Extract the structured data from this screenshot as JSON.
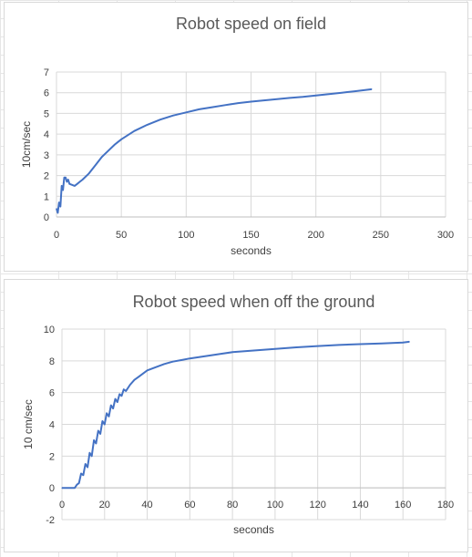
{
  "chart_data": [
    {
      "type": "line",
      "title": "Robot speed on field",
      "xlabel": "seconds",
      "ylabel": "10cm/sec",
      "xlim": [
        0,
        300
      ],
      "ylim": [
        0,
        7
      ],
      "xticks": [
        "0",
        "50",
        "100",
        "150",
        "200",
        "250",
        "300"
      ],
      "yticks": [
        "0",
        "1",
        "2",
        "3",
        "4",
        "5",
        "6",
        "7"
      ],
      "grid": true,
      "legend": "none",
      "series": [
        {
          "color": "#4472c4",
          "x": [
            0,
            1,
            2,
            3,
            4,
            5,
            6,
            7,
            8,
            9,
            10,
            12,
            14,
            16,
            18,
            20,
            25,
            30,
            35,
            40,
            45,
            50,
            60,
            70,
            80,
            90,
            100,
            110,
            120,
            130,
            140,
            150,
            160,
            170,
            180,
            190,
            200,
            210,
            220,
            230,
            243
          ],
          "y": [
            0.4,
            0.2,
            0.7,
            0.5,
            1.5,
            1.3,
            1.9,
            1.9,
            1.7,
            1.8,
            1.6,
            1.55,
            1.5,
            1.6,
            1.7,
            1.8,
            2.1,
            2.5,
            2.9,
            3.2,
            3.5,
            3.75,
            4.15,
            4.45,
            4.7,
            4.9,
            5.05,
            5.2,
            5.3,
            5.4,
            5.5,
            5.57,
            5.63,
            5.69,
            5.75,
            5.8,
            5.87,
            5.93,
            6.0,
            6.07,
            6.17
          ]
        }
      ]
    },
    {
      "type": "line",
      "title": "Robot speed when off the ground",
      "xlabel": "seconds",
      "ylabel": "10 cm/sec",
      "xlim": [
        0,
        180
      ],
      "ylim": [
        -2,
        10
      ],
      "xticks": [
        "0",
        "20",
        "40",
        "60",
        "80",
        "100",
        "120",
        "140",
        "160",
        "180"
      ],
      "yticks": [
        "-2",
        "0",
        "2",
        "4",
        "6",
        "8",
        "10"
      ],
      "grid": true,
      "legend": "none",
      "series": [
        {
          "color": "#4472c4",
          "x": [
            0,
            2,
            4,
            6,
            7,
            8,
            9,
            10,
            11,
            12,
            13,
            14,
            15,
            16,
            17,
            18,
            19,
            20,
            21,
            22,
            23,
            24,
            25,
            26,
            27,
            28,
            29,
            30,
            32,
            34,
            36,
            38,
            40,
            44,
            48,
            52,
            56,
            60,
            65,
            70,
            75,
            80,
            90,
            100,
            110,
            120,
            130,
            140,
            150,
            160,
            163
          ],
          "y": [
            0,
            0,
            0,
            0,
            0.2,
            0.3,
            0.9,
            0.8,
            1.5,
            1.3,
            2.2,
            2.0,
            3.0,
            2.8,
            3.6,
            3.4,
            4.2,
            4.0,
            4.7,
            4.5,
            5.2,
            5.0,
            5.6,
            5.4,
            5.9,
            5.8,
            6.2,
            6.1,
            6.5,
            6.8,
            7.0,
            7.2,
            7.4,
            7.6,
            7.8,
            7.95,
            8.05,
            8.15,
            8.25,
            8.35,
            8.45,
            8.55,
            8.65,
            8.75,
            8.85,
            8.93,
            9.0,
            9.05,
            9.1,
            9.15,
            9.2
          ]
        }
      ]
    }
  ]
}
